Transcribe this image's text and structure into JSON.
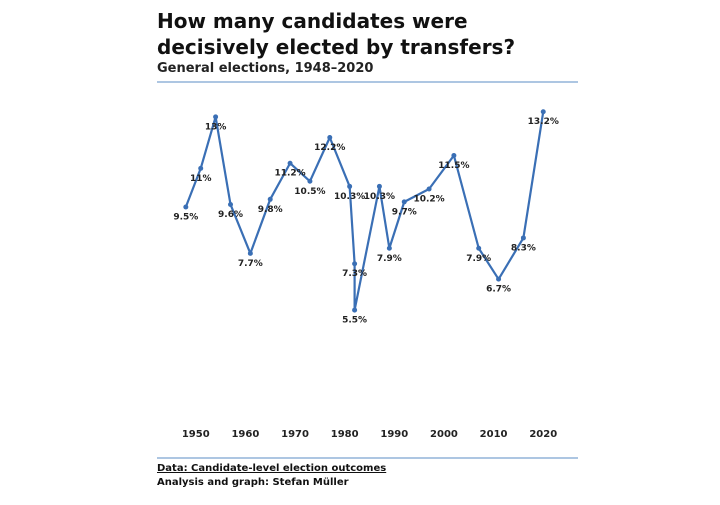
{
  "chart_data": {
    "type": "line",
    "title": "How many candidates were decisively elected by transfers?",
    "subtitle": "General elections, 1948–2020",
    "source": "Data: Candidate-level election outcomes",
    "credit": "Analysis and graph: Stefan Müller",
    "x": [
      1948,
      1951,
      1954,
      1957,
      1961,
      1965,
      1969,
      1973,
      1977,
      1981,
      1982,
      1982,
      1987,
      1989,
      1992,
      1997,
      2002,
      2007,
      2011,
      2016,
      2020
    ],
    "series": [
      {
        "color": "#3a6fb5",
        "values": [
          9.5,
          11,
          13,
          9.6,
          7.7,
          9.8,
          11.2,
          10.5,
          12.2,
          10.3,
          7.3,
          5.5,
          10.3,
          7.9,
          9.7,
          10.2,
          11.5,
          7.9,
          6.7,
          8.3,
          13.2
        ],
        "value_labels": [
          "9.5%",
          "11%",
          "13%",
          "9.6%",
          "7.7%",
          "9.8%",
          "11.2%",
          "10.5%",
          "12.2%",
          "10.3%",
          "7.3%",
          "5.5%",
          "10.3%",
          "7.9%",
          "9.7%",
          "10.2%",
          "11.5%",
          "7.9%",
          "6.7%",
          "8.3%",
          "13.2%"
        ]
      }
    ],
    "xlim": [
      1943,
      2027
    ],
    "xticks": [
      1950,
      1960,
      1970,
      1980,
      1990,
      2000,
      2010,
      2020
    ],
    "ylim": [
      1,
      13.5
    ]
  }
}
